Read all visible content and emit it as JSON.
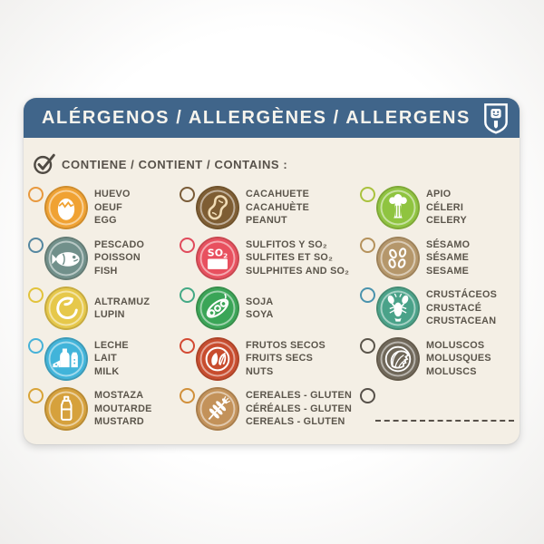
{
  "card": {
    "background": "#f4efe5",
    "header": {
      "title": "ALÉRGENOS / ALLERGÈNES / ALLERGENS",
      "background": "#40658a",
      "text_color": "#f7f4ed",
      "logo_icon": "shield-face-logo-icon"
    },
    "contains_line": {
      "icon": "checkmark-circle-icon",
      "label": "CONTIENE / CONTIENT / CONTAINS :",
      "text_color": "#57514a"
    },
    "allergens": {
      "columns": 3,
      "items": [
        {
          "id": "egg",
          "icon": "egg-icon",
          "lines": [
            "HUEVO",
            "OEUF",
            "EGG"
          ],
          "badge_color": "#f0a233",
          "checkbox_color": "#e8993e"
        },
        {
          "id": "peanut",
          "icon": "peanut-icon",
          "lines": [
            "CACAHUETE",
            "CACAHUÈTE",
            "PEANUT"
          ],
          "badge_color": "#7e5d33",
          "checkbox_color": "#7a5c38"
        },
        {
          "id": "celery",
          "icon": "celery-icon",
          "lines": [
            "APIO",
            "CÉLERI",
            "CELERY"
          ],
          "badge_color": "#8fc440",
          "checkbox_color": "#aac23e"
        },
        {
          "id": "fish",
          "icon": "fish-icon",
          "lines": [
            "PESCADO",
            "POISSON",
            "FISH"
          ],
          "badge_color": "#71908b",
          "checkbox_color": "#5587a0"
        },
        {
          "id": "sulphites",
          "icon": "so2-box-icon",
          "lines": [
            "SULFITOS Y SO₂",
            "SULFITES ET SO₂",
            "SULPHITES AND SO₂"
          ],
          "badge_color": "#e8505f",
          "checkbox_color": "#e04b5c"
        },
        {
          "id": "sesame",
          "icon": "sesame-seeds-icon",
          "lines": [
            "SÉSAMO",
            "SÉSAME",
            "SESAME"
          ],
          "badge_color": "#b5976b",
          "checkbox_color": "#b5925c"
        },
        {
          "id": "lupin",
          "icon": "lupin-seed-icon",
          "lines": [
            "ALTRAMUZ",
            "LUPIN"
          ],
          "badge_color": "#e6c84a",
          "checkbox_color": "#e2c33c"
        },
        {
          "id": "soy",
          "icon": "soy-pod-icon",
          "lines": [
            "SOJA",
            "SOYA"
          ],
          "badge_color": "#3aa557",
          "checkbox_color": "#44a985"
        },
        {
          "id": "crustacean",
          "icon": "lobster-icon",
          "lines": [
            "CRUSTÁCEOS",
            "CRUSTACÉ",
            "CRUSTACEAN"
          ],
          "badge_color": "#4aa289",
          "checkbox_color": "#4a93ad"
        },
        {
          "id": "milk",
          "icon": "milk-bottle-icon",
          "lines": [
            "LECHE",
            "LAIT",
            "MILK"
          ],
          "badge_color": "#41b4da",
          "checkbox_color": "#47b2d8"
        },
        {
          "id": "nuts",
          "icon": "almonds-icon",
          "lines": [
            "FRUTOS SECOS",
            "FRUITS SECS",
            "NUTS"
          ],
          "badge_color": "#c84c2e",
          "checkbox_color": "#d34a33"
        },
        {
          "id": "molluscs",
          "icon": "shell-icon",
          "lines": [
            "MOLUSCOS",
            "MOLUSQUES",
            "MOLUSCS"
          ],
          "badge_color": "#6f6759",
          "checkbox_color": "#5b554b"
        },
        {
          "id": "mustard",
          "icon": "mustard-bottle-icon",
          "lines": [
            "MOSTAZA",
            "MOUTARDE",
            "MUSTARD"
          ],
          "badge_color": "#d6a13c",
          "checkbox_color": "#d9a438"
        },
        {
          "id": "cereals",
          "icon": "wheat-icon",
          "lines": [
            "CEREALES - GLUTEN",
            "CÉRÉALES - GLUTEN",
            "CEREALS - GLUTEN"
          ],
          "badge_color": "#c3925a",
          "checkbox_color": "#d1903b"
        },
        {
          "id": "other-write-in",
          "icon": "empty-write-in",
          "lines": [],
          "badge_color": "",
          "checkbox_color": "#57514a",
          "dashed_line": true
        }
      ]
    }
  }
}
